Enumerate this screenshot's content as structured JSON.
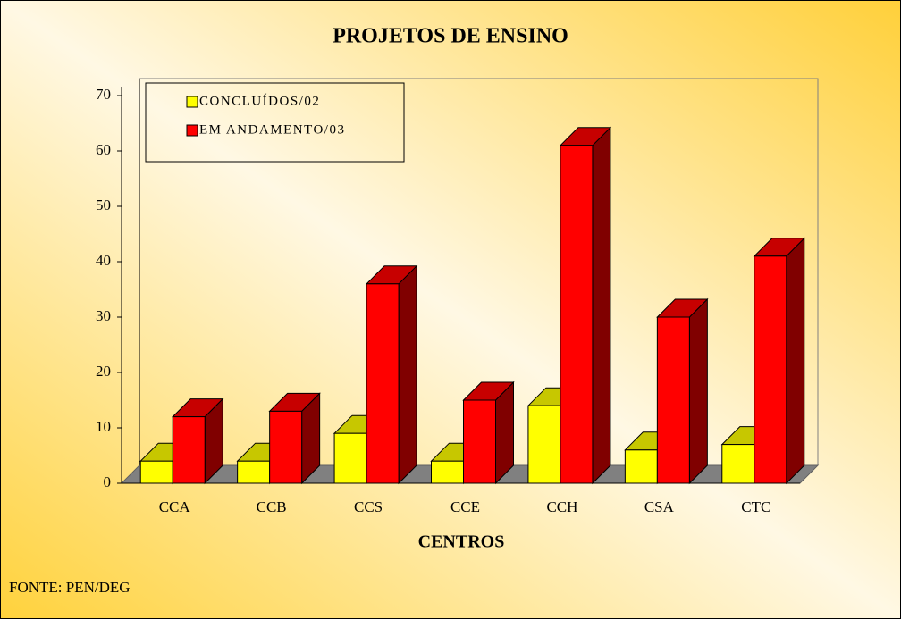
{
  "chart_data": {
    "type": "bar3d",
    "title": "PROJETOS DE ENSINO",
    "x_label": "CENTROS",
    "source": "FONTE: PEN/DEG",
    "categories": [
      "CCA",
      "CCB",
      "CCS",
      "CCE",
      "CCH",
      "CSA",
      "CTC"
    ],
    "series": [
      {
        "name": "CONCLUÍDOS/02",
        "color": "#ffff00",
        "values": [
          4,
          4,
          9,
          4,
          14,
          6,
          7
        ]
      },
      {
        "name": "EM ANDAMENTO/03",
        "color": "#ff0000",
        "values": [
          12,
          13,
          36,
          15,
          61,
          30,
          41
        ]
      }
    ],
    "ylim": [
      0,
      70
    ],
    "yticks": [
      0,
      10,
      20,
      30,
      40,
      50,
      60,
      70
    ],
    "grid": false,
    "legend": "top-left"
  }
}
